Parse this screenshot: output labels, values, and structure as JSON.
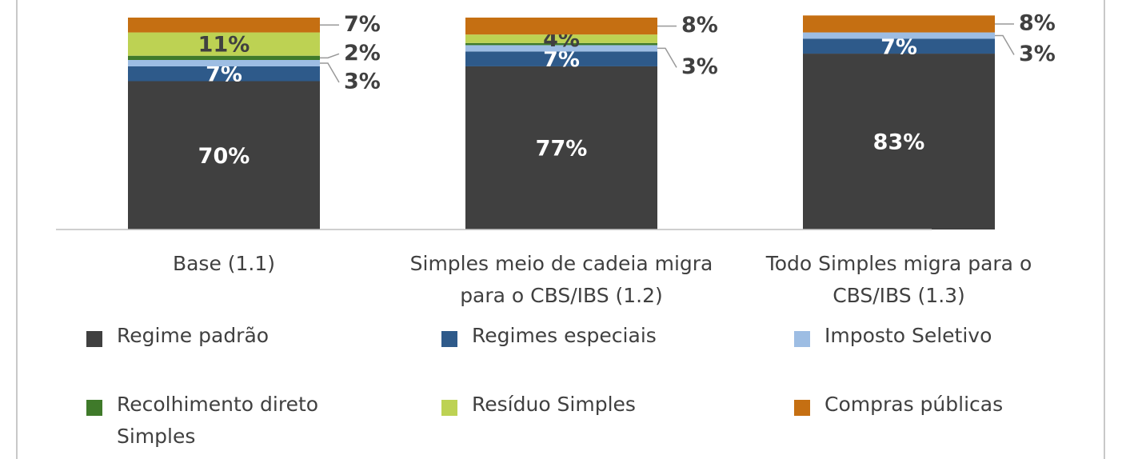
{
  "chart_data": {
    "type": "stacked_bar",
    "categories": [
      "Base (1.1)",
      "Simples meio de cadeia migra para o CBS/IBS (1.2)",
      "Todo Simples migra para o CBS/IBS  (1.3)"
    ],
    "ylim": [
      0,
      100
    ],
    "series": [
      {
        "name": "Regime padrão",
        "color": "#404040",
        "values": [
          70,
          77,
          83
        ],
        "value_labels": [
          "70%",
          "77%",
          "83%"
        ]
      },
      {
        "name": "Regimes especiais",
        "color": "#2e5a8a",
        "values": [
          7,
          7,
          7
        ],
        "value_labels": [
          "7%",
          "7%",
          "7%"
        ]
      },
      {
        "name": "Imposto Seletivo",
        "color": "#9dbde3",
        "values": [
          3,
          3,
          3
        ],
        "value_labels": [
          "3%",
          "3%",
          "3%"
        ]
      },
      {
        "name": "Recolhimento direto Simples",
        "color": "#3f7a2a",
        "values": [
          2,
          1,
          0
        ],
        "value_labels": [
          "2%",
          null,
          null
        ]
      },
      {
        "name": "Resíduo Simples",
        "color": "#bdd253",
        "values": [
          11,
          4,
          0
        ],
        "value_labels": [
          "11%",
          "4%",
          null
        ]
      },
      {
        "name": "Compras públicas",
        "color": "#c56f12",
        "values": [
          7,
          8,
          8
        ],
        "value_labels": [
          "7%",
          "8%",
          "8%"
        ]
      }
    ],
    "legend": "bottom"
  }
}
